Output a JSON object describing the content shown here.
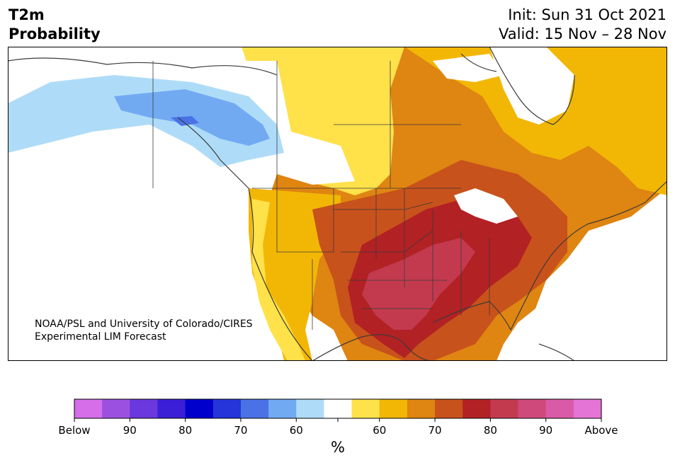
{
  "header": {
    "title_line1": "T2m",
    "title_line2": "Probability",
    "init": "Init: Sun 31 Oct 2021",
    "valid": "Valid: 15 Nov – 28 Nov"
  },
  "credit": {
    "line1": "NOAA/PSL and University of Colorado/CIRES",
    "line2": "Experimental LIM Forecast"
  },
  "colorbar": {
    "colors": [
      "#d56ee8",
      "#9b50e0",
      "#6a38dc",
      "#3a1fd6",
      "#0000cc",
      "#2535d9",
      "#4a72e6",
      "#72aaf2",
      "#aedcf8",
      "#ffffff",
      "#ffe14a",
      "#f2b705",
      "#df8512",
      "#c8521b",
      "#b22124",
      "#c33a4f",
      "#cf4a7a",
      "#d95aa6",
      "#e474d6"
    ],
    "labels": [
      "Below",
      "90",
      "80",
      "70",
      "60",
      "60",
      "70",
      "80",
      "90",
      "Above"
    ],
    "unit": "%"
  },
  "map": {
    "colors": {
      "background": "#ffffff",
      "light_blue": "#aedcf8",
      "mid_blue": "#72aaf2",
      "blue": "#4a72e6",
      "yellow": "#ffe14a",
      "gold": "#f2b705",
      "orange": "#df8512",
      "burnt": "#c8521b",
      "red": "#b22124",
      "crimson": "#c33a4f",
      "coast": "#3a3a3a"
    }
  }
}
